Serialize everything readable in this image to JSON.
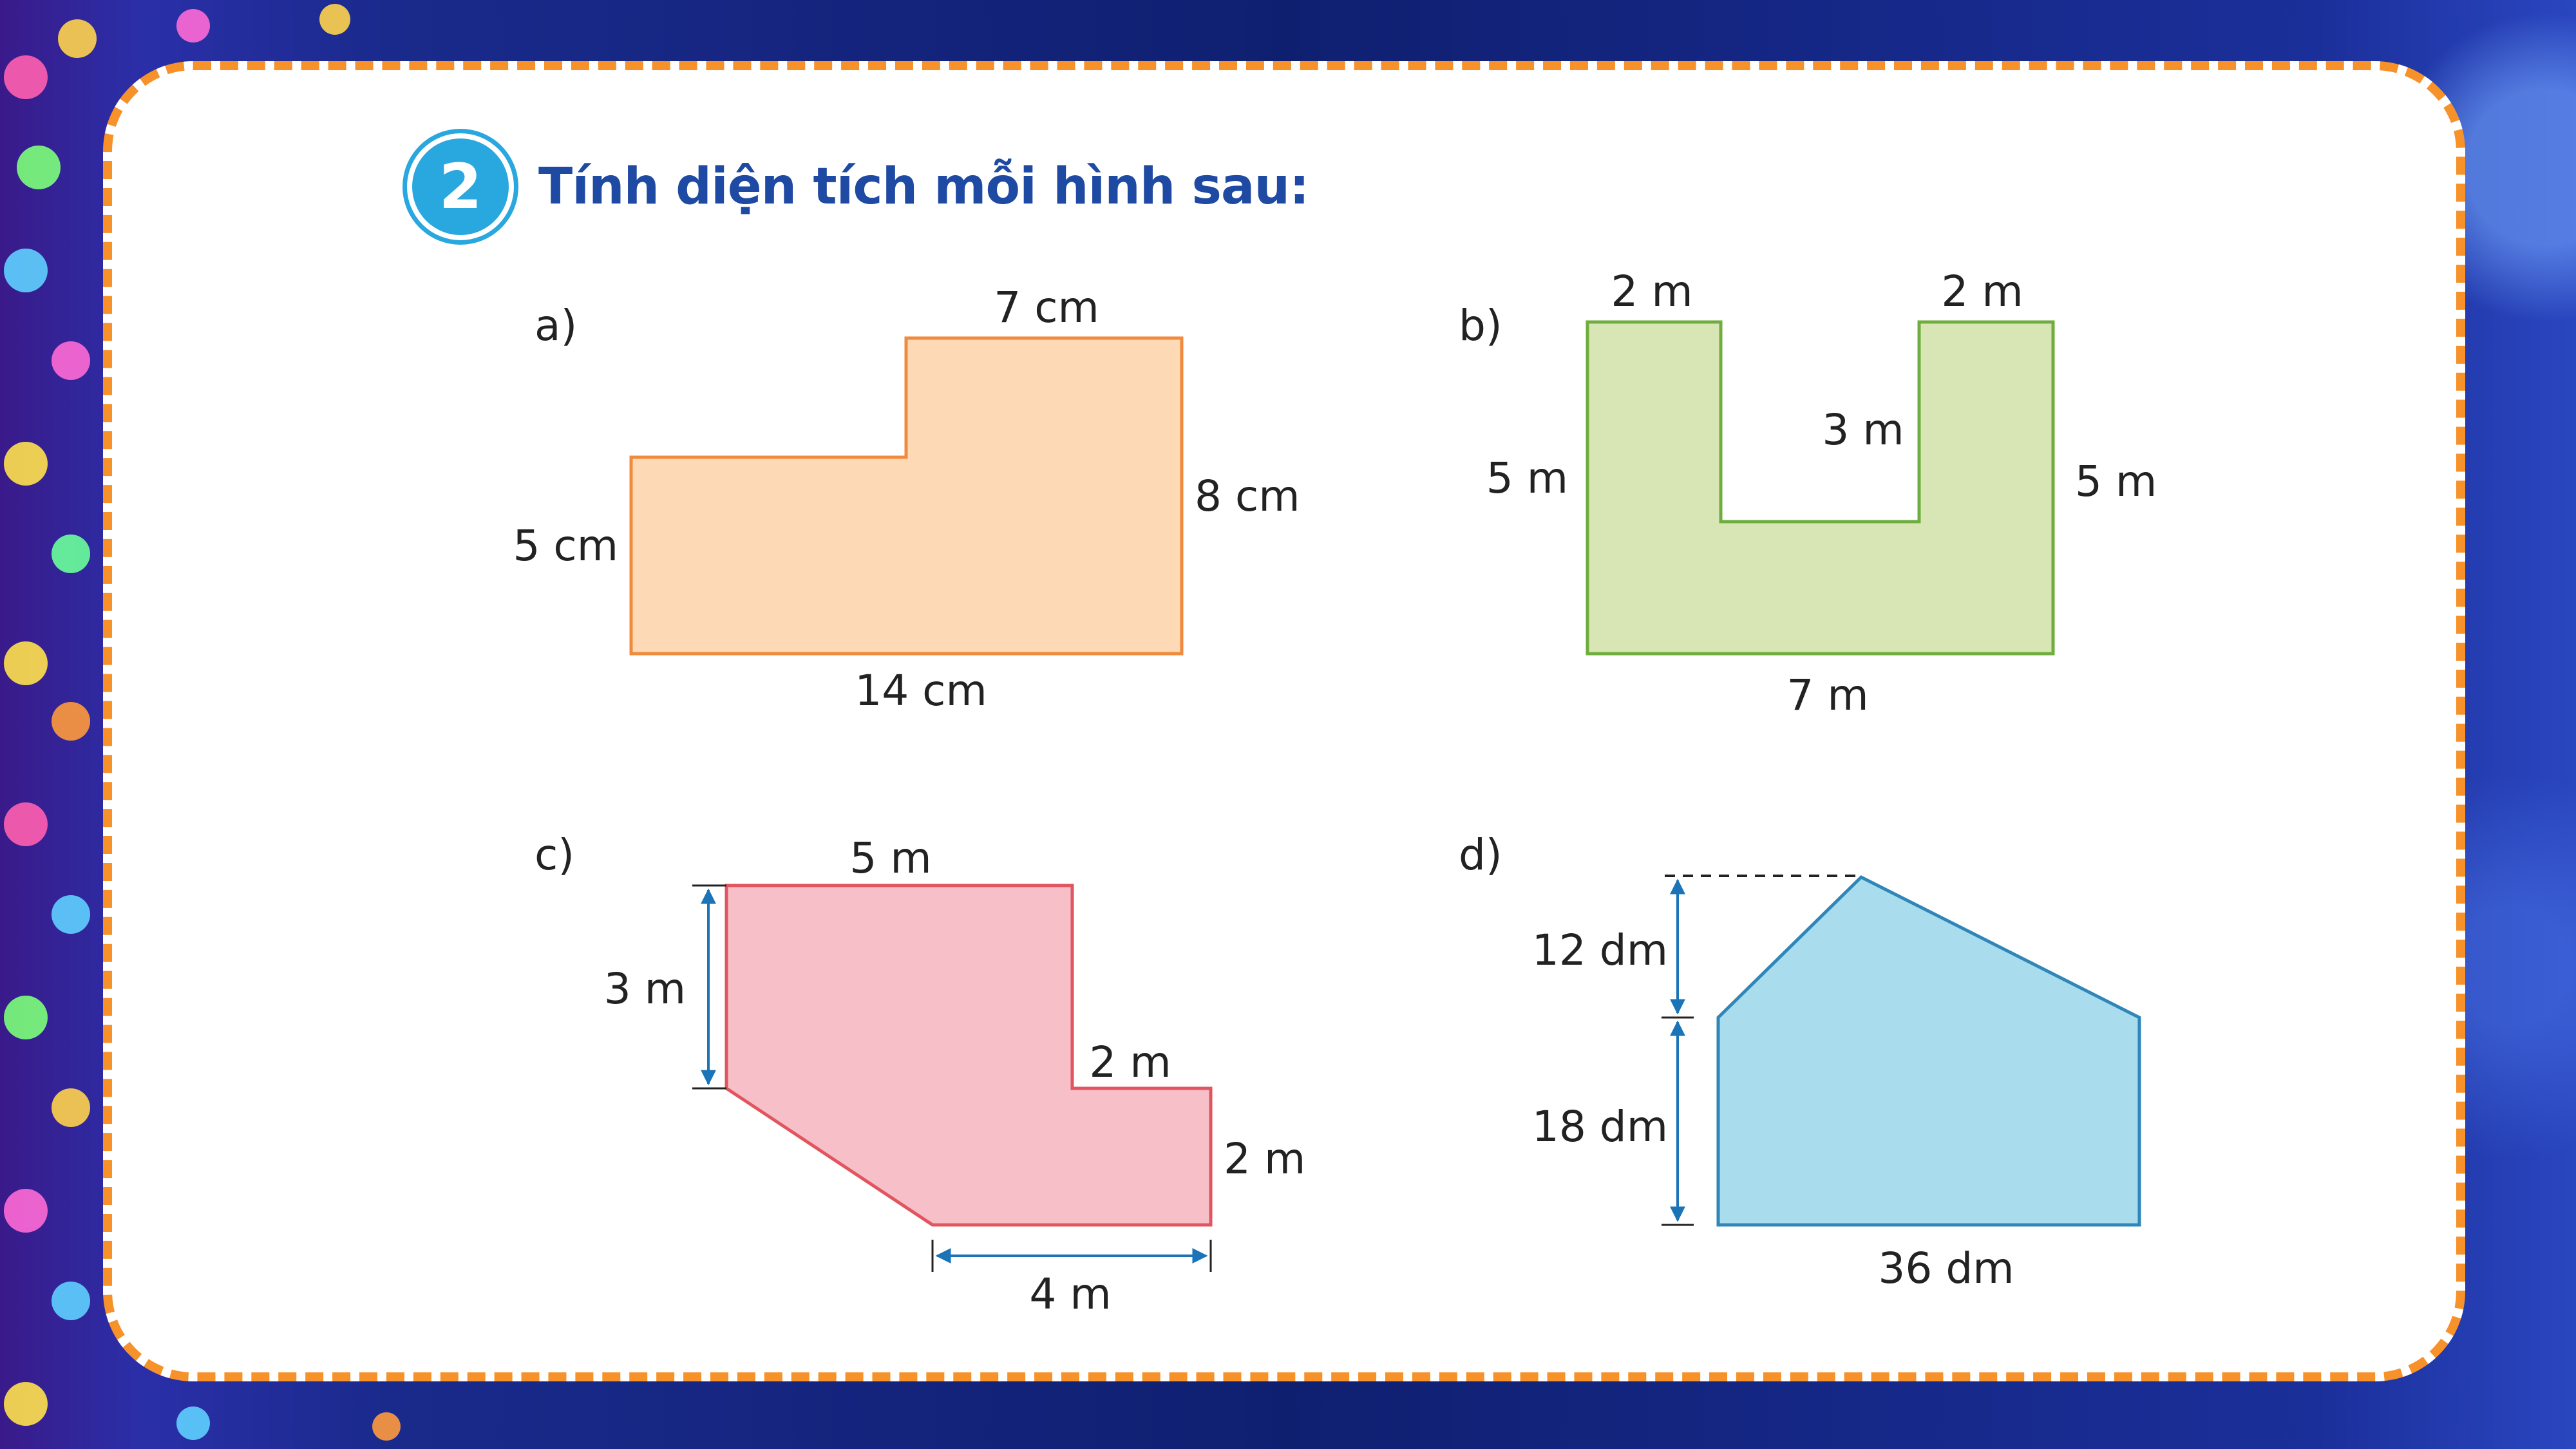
{
  "exercise": {
    "number": "2",
    "title": "Tính diện tích mỗi hình sau:"
  },
  "figures": {
    "a": {
      "label": "a)",
      "top": "7 cm",
      "right": "8 cm",
      "left": "5 cm",
      "bottom": "14 cm"
    },
    "b": {
      "label": "b)",
      "top_left": "2 m",
      "top_right": "2 m",
      "inner": "3 m",
      "left": "5 m",
      "right": "5 m",
      "bottom": "7 m"
    },
    "c": {
      "label": "c)",
      "top": "5 m",
      "left": "3 m",
      "step_top": "2 m",
      "step_right": "2 m",
      "bottom": "4 m"
    },
    "d": {
      "label": "d)",
      "upper": "12 dm",
      "lower": "18 dm",
      "bottom": "36 dm"
    }
  },
  "colors": {
    "accent_orange": "#f7922b",
    "title_blue": "#1f4aa3",
    "badge_blue": "#29a7df",
    "fig_a": "#fdd9b5",
    "fig_b": "#d8e6b6",
    "fig_c": "#f7c0c8",
    "fig_d": "#a9dcec",
    "dimension_line": "#1b73b8"
  }
}
